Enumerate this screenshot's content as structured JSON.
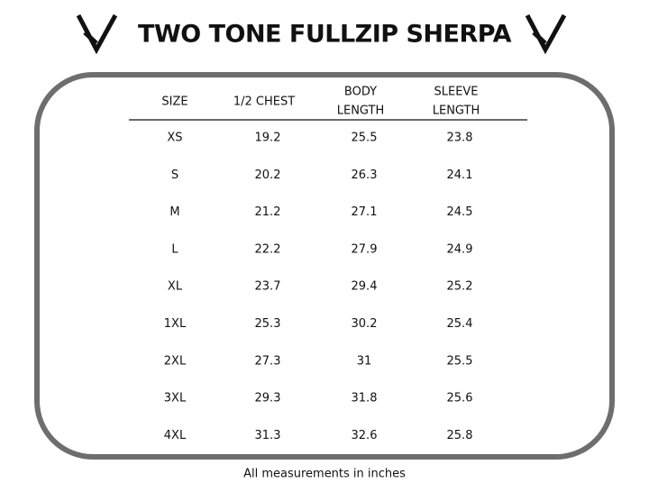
{
  "header": {
    "title": "TWO TONE FULLZIP SHERPA"
  },
  "table": {
    "columns": [
      [
        "SIZE"
      ],
      [
        "1/2 CHEST"
      ],
      [
        "BODY",
        "LENGTH"
      ],
      [
        "SLEEVE",
        "LENGTH"
      ]
    ],
    "rows": [
      [
        "XS",
        "19.2",
        "25.5",
        "23.8"
      ],
      [
        "S",
        "20.2",
        "26.3",
        "24.1"
      ],
      [
        "M",
        "21.2",
        "27.1",
        "24.5"
      ],
      [
        "L",
        "22.2",
        "27.9",
        "24.9"
      ],
      [
        "XL",
        "23.7",
        "29.4",
        "25.2"
      ],
      [
        "1XL",
        "25.3",
        "30.2",
        "25.4"
      ],
      [
        "2XL",
        "27.3",
        "31",
        "25.5"
      ],
      [
        "3XL",
        "29.3",
        "31.8",
        "25.6"
      ],
      [
        "4XL",
        "31.3",
        "32.6",
        "25.8"
      ]
    ]
  },
  "footer": {
    "note": "All measurements in inches"
  }
}
